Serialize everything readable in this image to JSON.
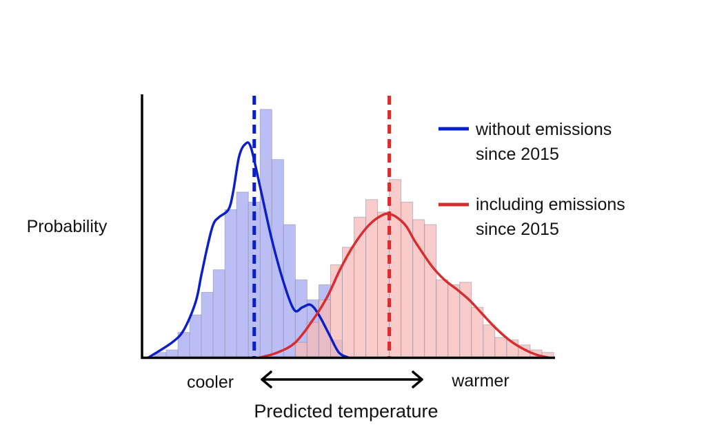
{
  "chart_data": {
    "type": "bar",
    "ylabel": "Probability",
    "xlabel": "Predicted temperature",
    "x_left_label": "cooler",
    "x_right_label": "warmer",
    "legend_placement": "top-right",
    "grid": false,
    "series": [
      {
        "name_lines": [
          "without emissions",
          "since 2015"
        ],
        "color": "#0b1fc8",
        "fill": "#b7baf3",
        "hist_start": 0.5,
        "hist": [
          0.02,
          0.03,
          0.1,
          0.17,
          0.26,
          0.35,
          0.59,
          0.66,
          0.62,
          0.99,
          0.79,
          0.53,
          0.31,
          0.23,
          0.29,
          0.07
        ],
        "kde_x": [
          0,
          2,
          3,
          4,
          4.5,
          5,
          5.5,
          6,
          6.8,
          7.2,
          7.7,
          8.2,
          8.7,
          9.5,
          10.5,
          11.5,
          12.4,
          13.1,
          13.8,
          14.5,
          15.4,
          16.2,
          17
        ],
        "kde_y": [
          0,
          0.06,
          0.11,
          0.22,
          0.33,
          0.44,
          0.53,
          0.56,
          0.59,
          0.66,
          0.8,
          0.85,
          0.84,
          0.68,
          0.47,
          0.3,
          0.19,
          0.2,
          0.21,
          0.17,
          0.09,
          0.02,
          0
        ],
        "mean": 9.0
      },
      {
        "name_lines": [
          "including emissions",
          "since 2015"
        ],
        "color": "#d82d2f",
        "fill": "#f7b9b8",
        "hist_start": 12.5,
        "hist": [
          0.06,
          0.14,
          0.23,
          0.37,
          0.44,
          0.56,
          0.63,
          0.58,
          0.71,
          0.62,
          0.55,
          0.53,
          0.31,
          0.29,
          0.3,
          0.2,
          0.13,
          0.08,
          0.07,
          0.05,
          0.03,
          0.02
        ],
        "kde_x": [
          9.5,
          11,
          12.5,
          14,
          15.2,
          16.3,
          17.5,
          18.8,
          20,
          20.7,
          21.4,
          22,
          22.6,
          23.3,
          24.2,
          25.2,
          26.3,
          27.3,
          28.3,
          29.5,
          30.7,
          31.5,
          32.3,
          33.1,
          34
        ],
        "kde_y": [
          0,
          0.02,
          0.06,
          0.15,
          0.24,
          0.35,
          0.45,
          0.53,
          0.57,
          0.57,
          0.55,
          0.52,
          0.47,
          0.42,
          0.36,
          0.31,
          0.27,
          0.23,
          0.18,
          0.12,
          0.07,
          0.045,
          0.025,
          0.01,
          0
        ],
        "mean": 20.5
      }
    ],
    "x_min": -0.5,
    "x_max": 34.5,
    "y_max": 1.05
  }
}
